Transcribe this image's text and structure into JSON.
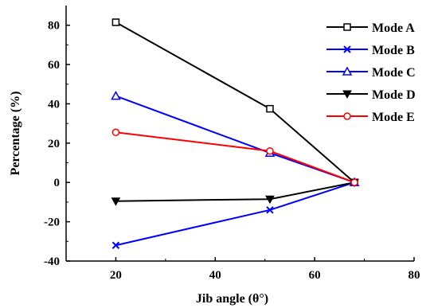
{
  "chart_data": {
    "type": "line",
    "xlabel": "Jib angle (θ°)",
    "ylabel": "Percentage (%)",
    "xlim": [
      10,
      80
    ],
    "ylim": [
      -40,
      90
    ],
    "x_ticks": [
      20,
      40,
      60,
      80
    ],
    "y_ticks": [
      -40,
      -20,
      0,
      20,
      40,
      60,
      80
    ],
    "x": [
      20,
      51,
      68
    ],
    "grid": false,
    "legend_position": "top-right",
    "series": [
      {
        "name": "Mode A",
        "values": [
          81.5,
          37.5,
          0
        ],
        "color": "#000000",
        "marker": "square-open"
      },
      {
        "name": "Mode B",
        "values": [
          -32,
          -14,
          0
        ],
        "color": "#0000ff",
        "marker": "x"
      },
      {
        "name": "Mode C",
        "values": [
          44,
          15,
          0
        ],
        "color": "#0000ff",
        "marker": "triangle-up-open"
      },
      {
        "name": "Mode D",
        "values": [
          -9.5,
          -8.5,
          0
        ],
        "color": "#000000",
        "marker": "triangle-down-filled"
      },
      {
        "name": "Mode E",
        "values": [
          25.5,
          16,
          0
        ],
        "color": "#ff0000",
        "marker": "circle-open"
      }
    ]
  }
}
